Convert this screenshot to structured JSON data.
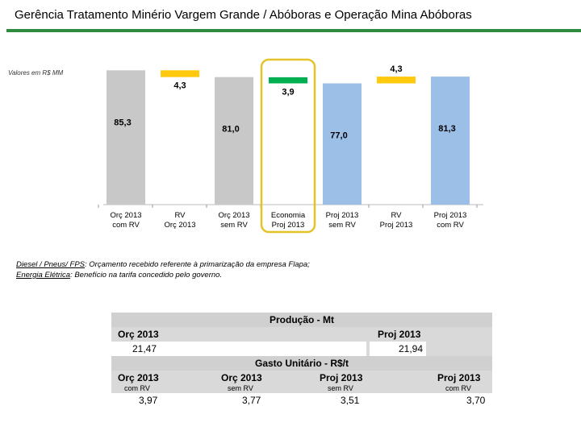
{
  "title": "Gerência Tratamento Minério Vargem Grande / Abóboras e Operação Mina Abóboras",
  "units_label": "Valores em R$ MM",
  "colors": {
    "grey": "#c8c8c8",
    "yellow": "#ffc90e",
    "green": "#00b050",
    "blue": "#9cbfe8",
    "highlight": "#e6c229",
    "rule": "#2e8b3e"
  },
  "chart_data": {
    "type": "bar",
    "subtype": "waterfall",
    "categories": [
      "Orç 2013 com RV",
      "RV Orç 2013",
      "Orç 2013 sem RV",
      "Economia Proj 2013",
      "Proj 2013 sem RV",
      "RV Proj 2013",
      "Proj 2013 com RV"
    ],
    "category_lines": [
      [
        "Orç 2013",
        "com RV"
      ],
      [
        "RV",
        "Orç 2013"
      ],
      [
        "Orç 2013",
        "sem RV"
      ],
      [
        "Economia",
        "Proj 2013"
      ],
      [
        "Proj 2013",
        "sem RV"
      ],
      [
        "RV",
        "Proj 2013"
      ],
      [
        "Proj 2013",
        "com RV"
      ]
    ],
    "bars": [
      {
        "label": "85,3",
        "start": 0,
        "end": 85.3,
        "kind": "total",
        "color": "grey"
      },
      {
        "label": "4,3",
        "start": 81.0,
        "end": 85.3,
        "kind": "decrease",
        "color": "yellow"
      },
      {
        "label": "81,0",
        "start": 0,
        "end": 81.0,
        "kind": "total",
        "color": "grey"
      },
      {
        "label": "3,9",
        "start": 77.0,
        "end": 80.9,
        "kind": "decrease",
        "color": "green"
      },
      {
        "label": "77,0",
        "start": 0,
        "end": 77.0,
        "kind": "total",
        "color": "blue"
      },
      {
        "label": "4,3",
        "start": 77.0,
        "end": 81.3,
        "kind": "increase",
        "color": "yellow"
      },
      {
        "label": "81,3",
        "start": 0,
        "end": 81.3,
        "kind": "total",
        "color": "blue"
      }
    ],
    "highlighted_category": "Economia Proj 2013",
    "ylim": [
      0,
      88
    ],
    "grid": false
  },
  "notes": [
    {
      "key": "Diesel / Pneus/ FPS",
      "text": ": Orçamento recebido referente à primarização da empresa Flapa;"
    },
    {
      "key": "Energia Elétrica",
      "text": ": Benefício na tarifa concedido pelo governo."
    }
  ],
  "table": {
    "production_title": "Produção - Mt",
    "production": [
      {
        "label": "Orç 2013",
        "value": "21,47"
      },
      {
        "label": "Proj 2013",
        "value": "21,94"
      }
    ],
    "unit_cost_title": "Gasto Unitário - R$/t",
    "unit_cost": [
      {
        "label": "Orç 2013",
        "sub": "com RV",
        "value": "3,97"
      },
      {
        "label": "Orç 2013",
        "sub": "sem RV",
        "value": "3,77"
      },
      {
        "label": "Proj 2013",
        "sub": "sem RV",
        "value": "3,51"
      },
      {
        "label": "Proj 2013",
        "sub": "com RV",
        "value": "3,70"
      }
    ]
  }
}
